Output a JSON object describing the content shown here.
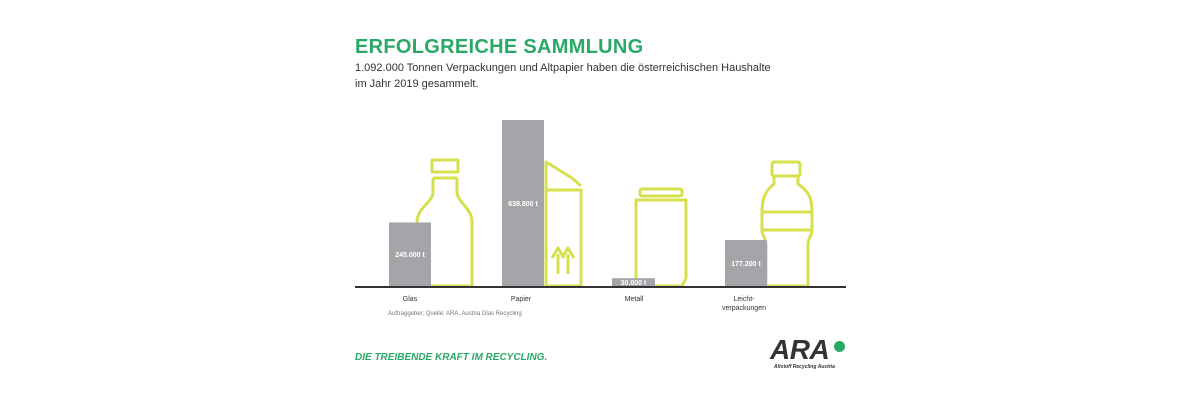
{
  "header": {
    "title": "ERFOLGREICHE SAMMLUNG",
    "subtitle": "1.092.000 Tonnen Verpackungen und Altpapier haben die österreichischen Haushalte im Jahr 2019 gesammelt."
  },
  "footer": {
    "source": "Auftraggeber, Quelle: ARA, Austria Glas Recycling",
    "tagline": "DIE TREIBENDE KRAFT IM RECYCLING.",
    "logo_text": "ARA",
    "logo_sub": "Altstoff Recycling Austria"
  },
  "colors": {
    "accent": "#2aa866",
    "bar": "#a3a5a8",
    "outline": "#d6e04c",
    "axis": "#333333"
  },
  "chart_data": {
    "type": "bar",
    "title": "ERFOLGREICHE SAMMLUNG",
    "categories": [
      "Glas",
      "Papier",
      "Metall",
      "Leicht-\nverpackungen"
    ],
    "values": [
      245000,
      639800,
      30000,
      177200
    ],
    "value_labels": [
      "245.000 t",
      "639.800 t",
      "30.000 t",
      "177.200 t"
    ],
    "unit": "t",
    "icons": [
      "bottle-icon",
      "carton-icon",
      "can-icon",
      "plastic-bottle-icon"
    ]
  }
}
